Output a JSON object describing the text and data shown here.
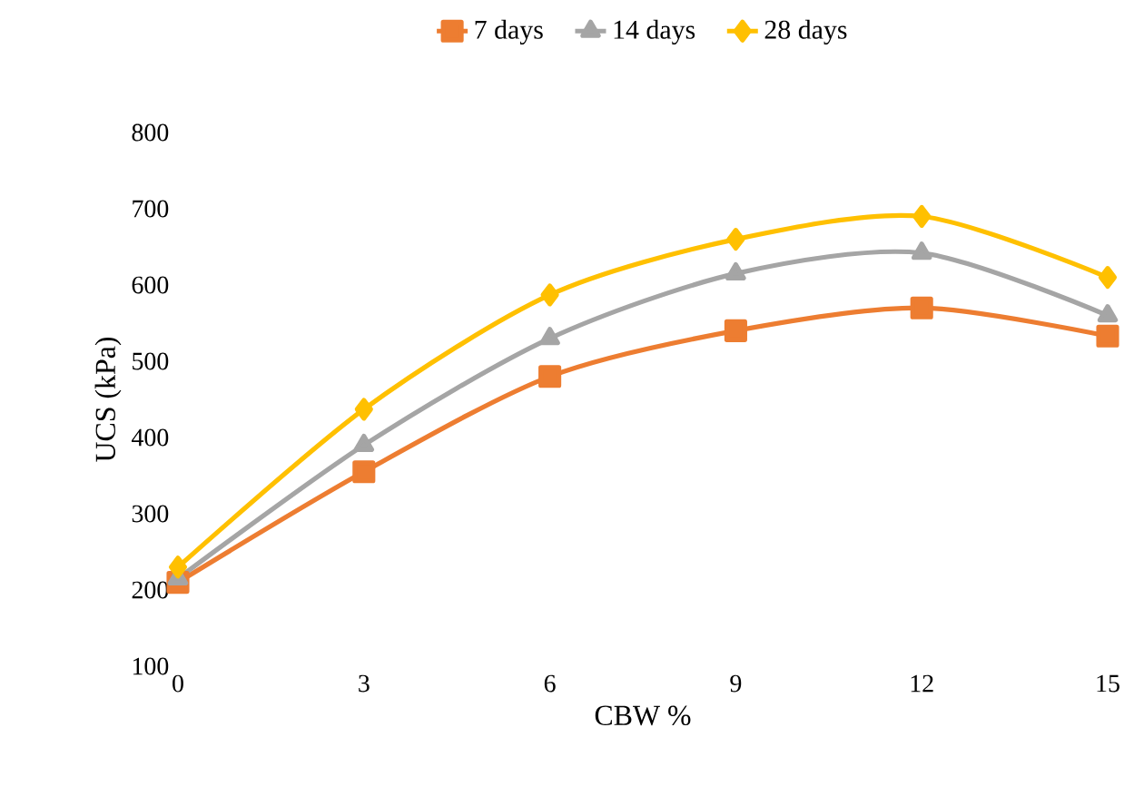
{
  "chart_data": {
    "type": "line",
    "xlabel": "CBW %",
    "ylabel": "UCS (kPa)",
    "x": [
      0,
      3,
      6,
      9,
      12,
      15
    ],
    "series": [
      {
        "name": "7 days",
        "color": "#ed7d31",
        "marker": "square",
        "values": [
          210,
          355,
          480,
          540,
          570,
          533
        ]
      },
      {
        "name": "14 days",
        "color": "#a5a5a5",
        "marker": "triangle",
        "values": [
          215,
          390,
          530,
          615,
          642,
          560
        ]
      },
      {
        "name": "28 days",
        "color": "#ffc000",
        "marker": "diamond",
        "values": [
          230,
          437,
          587,
          660,
          690,
          610
        ]
      }
    ],
    "xlim": [
      0,
      15
    ],
    "xticks": [
      0,
      3,
      6,
      9,
      12,
      15
    ],
    "ylim": [
      100,
      800
    ],
    "yticks": [
      100,
      200,
      300,
      400,
      500,
      600,
      700,
      800
    ],
    "grid": false,
    "legend": "top",
    "line_style": "solid"
  }
}
